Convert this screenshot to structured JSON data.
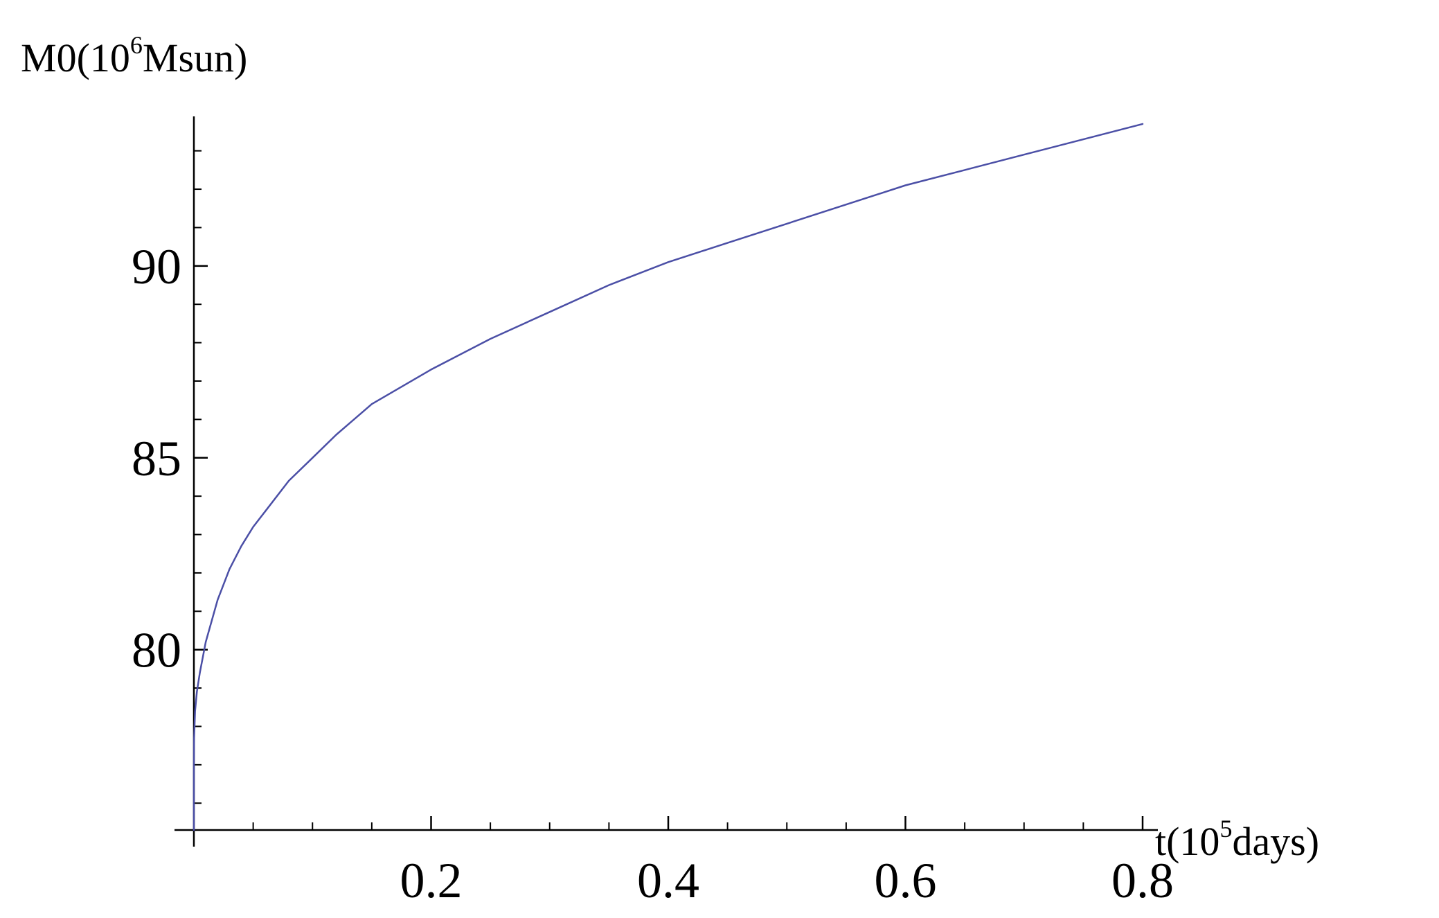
{
  "chart_data": {
    "type": "line",
    "title": "",
    "xlabel": "t(10",
    "xlabel_sup": "5",
    "xlabel_suffix": "days)",
    "ylabel": "M0(10",
    "ylabel_sup": "6",
    "ylabel_suffix": "Msun)",
    "xlim": [
      0,
      0.8
    ],
    "ylim": [
      75.3,
      93.5
    ],
    "grid": false,
    "x_ticks": [
      {
        "value": 0.2,
        "label": "0.2"
      },
      {
        "value": 0.4,
        "label": "0.4"
      },
      {
        "value": 0.6,
        "label": "0.6"
      },
      {
        "value": 0.8,
        "label": "0.8"
      }
    ],
    "y_ticks": [
      {
        "value": 80,
        "label": "80"
      },
      {
        "value": 85,
        "label": "85"
      },
      {
        "value": 90,
        "label": "90"
      }
    ],
    "series": [
      {
        "color": "#4b4fa6",
        "x": [
          0,
          2e-05,
          0.0002,
          0.001,
          0.0025,
          0.005,
          0.01,
          0.02,
          0.03,
          0.04,
          0.05,
          0.06,
          0.08,
          0.1,
          0.12,
          0.15,
          0.2,
          0.25,
          0.3,
          0.35,
          0.4,
          0.45,
          0.5,
          0.55,
          0.6,
          0.65,
          0.7,
          0.75,
          0.8
        ],
        "y": [
          75.3,
          76.8,
          77.7,
          78.4,
          78.9,
          79.4,
          80.2,
          81.3,
          82.1,
          82.7,
          83.2,
          83.6,
          84.4,
          85.0,
          85.6,
          86.4,
          87.3,
          88.1,
          88.8,
          89.5,
          90.1,
          90.6,
          91.1,
          91.6,
          92.1,
          92.5,
          92.9,
          93.3,
          93.7
        ]
      }
    ]
  }
}
